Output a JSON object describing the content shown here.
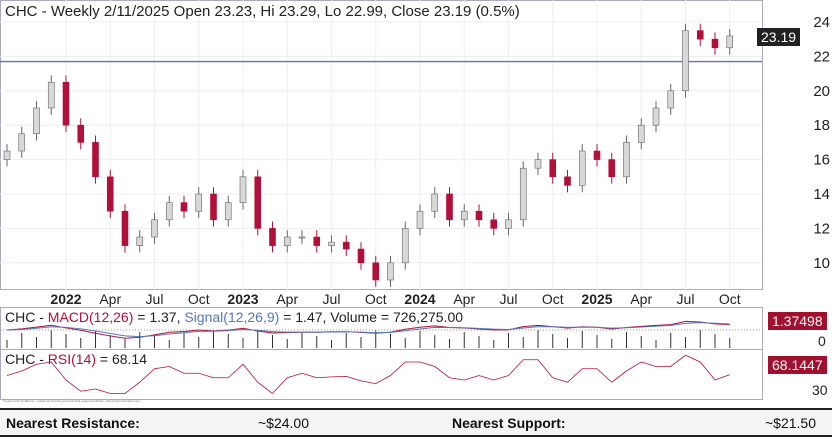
{
  "chart_data": {
    "type": "candlestick",
    "title": "CHC - Weekly 2/11/2025 Open 23.23, Hi 23.29, Lo 22.99, Close 23.19 (0.5%)",
    "last_price_label": "23.19",
    "ylim": [
      8,
      25
    ],
    "y_ticks": [
      "24",
      "22",
      "20",
      "18",
      "16",
      "14",
      "12",
      "10"
    ],
    "x_ticks": [
      {
        "label": "2022",
        "bold": true,
        "date": "2022-01"
      },
      {
        "label": "Apr",
        "date": "2022-04"
      },
      {
        "label": "Jul",
        "date": "2022-07"
      },
      {
        "label": "Oct",
        "date": "2022-10"
      },
      {
        "label": "2023",
        "bold": true,
        "date": "2023-01"
      },
      {
        "label": "Apr",
        "date": "2023-04"
      },
      {
        "label": "Jul",
        "date": "2023-07"
      },
      {
        "label": "Oct",
        "date": "2023-10"
      },
      {
        "label": "2024",
        "bold": true,
        "date": "2024-01"
      },
      {
        "label": "Apr",
        "date": "2024-04"
      },
      {
        "label": "Jul",
        "date": "2024-07"
      },
      {
        "label": "Oct",
        "date": "2024-10"
      },
      {
        "label": "2025",
        "bold": true,
        "date": "2025-01"
      },
      {
        "label": "Apr",
        "date": "2025-04"
      },
      {
        "label": "Jul",
        "date": "2025-07"
      },
      {
        "label": "Oct",
        "date": "2025-10"
      }
    ],
    "horizontal_line": 21.7,
    "dates": [
      "2021-09",
      "2021-10",
      "2021-11",
      "2021-12",
      "2022-01",
      "2022-02",
      "2022-03",
      "2022-04",
      "2022-05",
      "2022-06",
      "2022-07",
      "2022-08",
      "2022-09",
      "2022-10",
      "2022-11",
      "2022-12",
      "2023-01",
      "2023-02",
      "2023-03",
      "2023-04",
      "2023-05",
      "2023-06",
      "2023-07",
      "2023-08",
      "2023-09",
      "2023-10",
      "2023-11",
      "2023-12",
      "2024-01",
      "2024-02",
      "2024-03",
      "2024-04",
      "2024-05",
      "2024-06",
      "2024-07",
      "2024-08",
      "2024-09",
      "2024-10",
      "2024-11",
      "2024-12",
      "2025-01",
      "2025-02",
      "2025-03",
      "2025-04",
      "2025-05",
      "2025-06",
      "2025-07",
      "2025-08",
      "2025-09",
      "2025-10"
    ],
    "close": [
      16.5,
      17.5,
      19,
      20.5,
      18,
      17,
      15,
      13,
      11,
      11.5,
      12.5,
      13.5,
      13,
      14,
      12.5,
      13.5,
      15,
      12,
      11,
      11.5,
      11.5,
      11,
      11.2,
      10.8,
      10,
      9,
      10,
      12,
      13,
      14,
      12.5,
      13,
      12.5,
      12,
      12.5,
      15.5,
      16,
      15,
      14.5,
      16.5,
      16,
      15,
      17,
      18,
      19,
      20,
      23.5,
      23,
      22.5,
      23.19
    ],
    "macd": {
      "label_prefix": "CHC - ",
      "macd_label": "MACD(12,26)",
      "macd_value": "= 1.37,",
      "signal_label": "Signal(12,26,9)",
      "signal_value": "= 1.47,",
      "volume_label": "Volume = 726,275.00",
      "tag": "1.37498",
      "zero_tick": "0"
    },
    "rsi": {
      "label_prefix": "CHC - ",
      "rsi_label": "RSI(14)",
      "rsi_value": "= 68.14",
      "tag": "68.1447",
      "tick": "30"
    },
    "colors": {
      "up": "#d8d8d8",
      "down": "#b0103a",
      "line": "#5577bb",
      "tag_price": "#222",
      "tag_ind": "#a0102f"
    }
  },
  "credit": "Created with AmiBroker - advanced charting and technical analysis software. http://www.amibroker.com",
  "footer": {
    "resistance_label": "Nearest Resistance:",
    "resistance_value": "~$24.00",
    "support_label": "Nearest Support:",
    "support_value": "~$21.50"
  }
}
